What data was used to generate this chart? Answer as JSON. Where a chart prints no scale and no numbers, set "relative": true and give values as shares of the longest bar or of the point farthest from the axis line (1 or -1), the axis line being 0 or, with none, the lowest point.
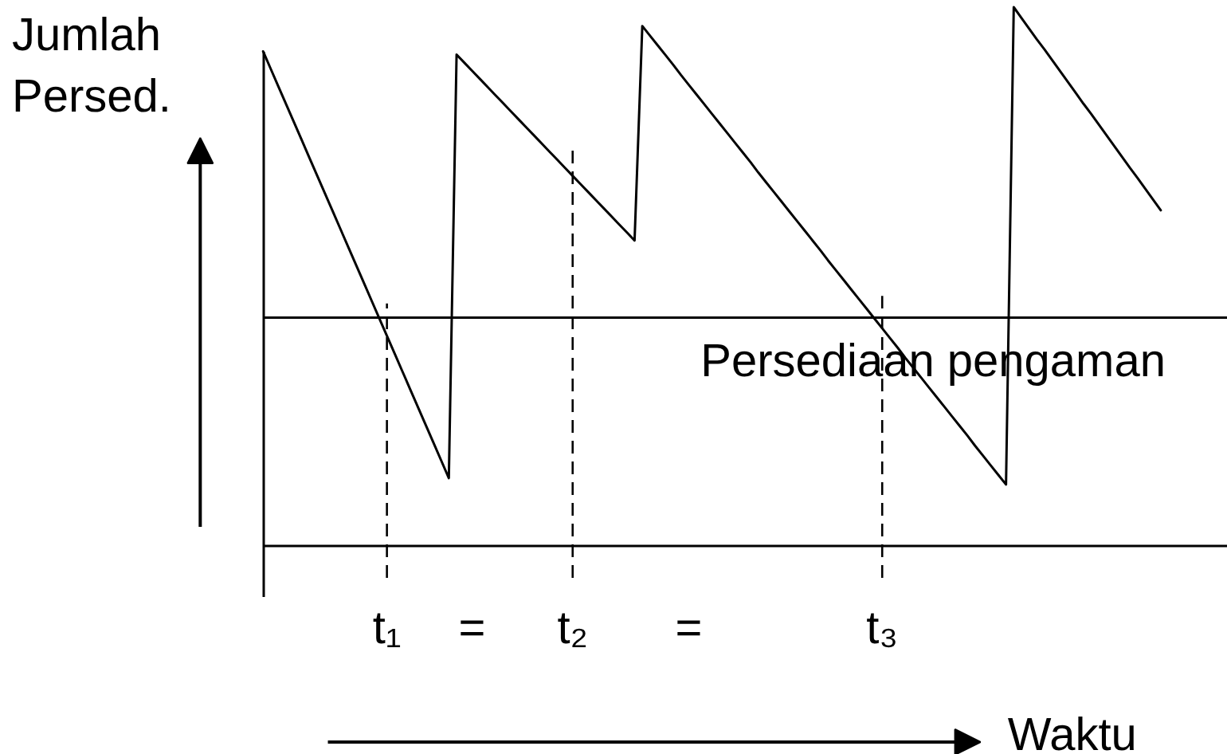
{
  "chart_data": {
    "type": "line",
    "xlabel": "Waktu",
    "ylabel": "Jumlah\nPersed.",
    "relative": true,
    "marker": "none",
    "line_style": "solid",
    "categories": [
      null,
      null,
      null,
      null,
      null,
      null,
      null,
      null,
      null,
      null,
      null,
      null,
      null,
      null,
      null,
      null,
      "t₁",
      null,
      null,
      null,
      null,
      null,
      null,
      null,
      null,
      null,
      null,
      "=",
      null,
      null,
      null,
      null,
      null,
      null,
      null,
      null,
      null,
      null,
      null,
      null,
      "t₂",
      null,
      null,
      null,
      null,
      null,
      null,
      null,
      null,
      null,
      null,
      null,
      null,
      null,
      null,
      "=",
      null,
      null,
      null,
      null,
      null,
      null,
      null,
      null,
      null,
      null,
      null,
      null,
      null,
      null,
      null,
      null,
      null,
      null,
      null,
      null,
      null,
      null,
      null,
      null,
      "t₃",
      null,
      null,
      null,
      null,
      null,
      null,
      null,
      null,
      null,
      null,
      null,
      null,
      null,
      null,
      null,
      null,
      null,
      null,
      null,
      null,
      null,
      null,
      null,
      null,
      null,
      null,
      null,
      null,
      null,
      null,
      null,
      null,
      null,
      null,
      null,
      null
    ],
    "series": [
      {
        "color": "#000000",
        "values": [
          0.918,
          0.885,
          0.852,
          0.819,
          0.786,
          0.753,
          0.72,
          0.687,
          0.654,
          0.621,
          0.588,
          0.555,
          0.522,
          0.489,
          0.456,
          0.423,
          0.39,
          0.357,
          0.324,
          0.291,
          0.258,
          0.225,
          0.192,
          0.159,
          0.126,
          0.912,
          0.897,
          0.882,
          0.867,
          0.852,
          0.837,
          0.822,
          0.807,
          0.792,
          0.777,
          0.762,
          0.747,
          0.732,
          0.717,
          0.702,
          0.687,
          0.672,
          0.657,
          0.642,
          0.627,
          0.612,
          0.597,
          0.582,
          0.567,
          0.965,
          0.947,
          0.929,
          0.911,
          0.893,
          0.874,
          0.856,
          0.838,
          0.82,
          0.802,
          0.784,
          0.766,
          0.748,
          0.73,
          0.712,
          0.693,
          0.675,
          0.657,
          0.639,
          0.621,
          0.603,
          0.585,
          0.567,
          0.549,
          0.53,
          0.512,
          0.494,
          0.476,
          0.458,
          0.44,
          0.422,
          0.404,
          0.386,
          0.368,
          0.349,
          0.331,
          0.313,
          0.295,
          0.277,
          0.259,
          0.241,
          0.223,
          0.205,
          0.186,
          0.168,
          0.15,
          0.132,
          0.114,
          1,
          0.98,
          0.96,
          0.94,
          0.921,
          0.901,
          0.881,
          0.861,
          0.841,
          0.821,
          0.802,
          0.782,
          0.762,
          0.742,
          0.722,
          0.702,
          0.683,
          0.663,
          0.643,
          0.623
        ]
      }
    ],
    "ref_lines": [
      {
        "axis": "y",
        "value": 0.424,
        "label": "Persediaan pengaman",
        "color": "#000000",
        "line_style": "solid"
      },
      {
        "axis": "x",
        "value": "t₁",
        "color": "#000000",
        "line_style": "dashed"
      },
      {
        "axis": "x",
        "value": "t₂",
        "color": "#000000",
        "line_style": "dashed"
      },
      {
        "axis": "x",
        "value": "t₃",
        "color": "#000000",
        "line_style": "dashed"
      }
    ]
  }
}
